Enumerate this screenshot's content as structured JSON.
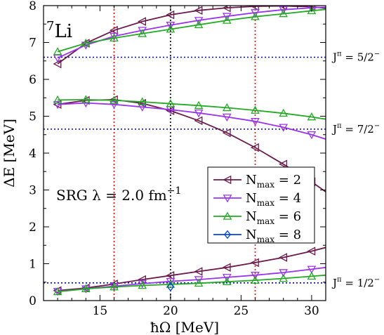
{
  "chart_data": {
    "type": "line",
    "xlabel": "ħΩ [MeV]",
    "ylabel": "ΔE [MeV]",
    "xlim": [
      11,
      31
    ],
    "ylim": [
      0,
      8
    ],
    "xticks": [
      15,
      20,
      25,
      30
    ],
    "yticks": [
      0,
      1,
      2,
      3,
      4,
      5,
      6,
      7,
      8
    ],
    "grid": false,
    "legend_position": "center-right",
    "nucleus": {
      "mass_number": "7",
      "symbol": "Li"
    },
    "annotation": {
      "main": "SRG λ = 2.0 fm",
      "exp": "−1"
    },
    "reference_lines": {
      "vertical": [
        {
          "x": 16,
          "color": "#ff0000"
        },
        {
          "x": 20,
          "color": "#000000"
        },
        {
          "x": 26,
          "color": "#ff0000"
        }
      ],
      "horizontal": [
        {
          "y": 6.6,
          "color": "#0000cc",
          "label": {
            "base": "J",
            "sup": "π",
            "rest": " = 5/2",
            "exp": "−"
          }
        },
        {
          "y": 4.65,
          "color": "#0000cc",
          "label": {
            "base": "J",
            "sup": "π",
            "rest": " = 7/2",
            "exp": "−"
          }
        },
        {
          "y": 0.48,
          "color": "#0000cc",
          "label": {
            "base": "J",
            "sup": "π",
            "rest": " = 1/2",
            "exp": "−"
          }
        }
      ]
    },
    "series": [
      {
        "name": "N_max = 2",
        "label_base": "N",
        "label_sub": "max",
        "label_rest": " = 2",
        "color": "#6b1a4a",
        "marker": "triangle-left",
        "states": [
          {
            "x": [
              12,
              14,
              16,
              18,
              20,
              22,
              24,
              26,
              28,
              30,
              31
            ],
            "y": [
              6.42,
              6.98,
              7.33,
              7.57,
              7.75,
              7.87,
              7.94,
              7.98,
              7.99,
              7.97,
              7.93
            ]
          },
          {
            "x": [
              12,
              14,
              16,
              18,
              20,
              22,
              24,
              26,
              28,
              30,
              31
            ],
            "y": [
              5.32,
              5.43,
              5.45,
              5.35,
              5.15,
              4.88,
              4.55,
              4.15,
              3.7,
              3.22,
              2.95
            ]
          },
          {
            "x": [
              12,
              14,
              16,
              18,
              20,
              22,
              24,
              26,
              28,
              30,
              31
            ],
            "y": [
              0.27,
              0.34,
              0.45,
              0.57,
              0.68,
              0.79,
              0.9,
              1.03,
              1.17,
              1.34,
              1.44
            ]
          }
        ]
      },
      {
        "name": "N_max = 4",
        "label_base": "N",
        "label_sub": "max",
        "label_rest": " = 4",
        "color": "#9933ee",
        "marker": "triangle-down",
        "states": [
          {
            "x": [
              12,
              14,
              16,
              18,
              20,
              22,
              24,
              26,
              28,
              30,
              31
            ],
            "y": [
              6.58,
              6.93,
              7.17,
              7.33,
              7.47,
              7.6,
              7.71,
              7.81,
              7.89,
              7.94,
              7.96
            ]
          },
          {
            "x": [
              12,
              14,
              16,
              18,
              20,
              22,
              24,
              26,
              28,
              30,
              31
            ],
            "y": [
              5.32,
              5.36,
              5.32,
              5.25,
              5.18,
              5.09,
              4.98,
              4.86,
              4.7,
              4.5,
              4.38
            ]
          },
          {
            "x": [
              12,
              14,
              16,
              18,
              20,
              22,
              24,
              26,
              28,
              30,
              31
            ],
            "y": [
              0.25,
              0.32,
              0.39,
              0.46,
              0.52,
              0.57,
              0.63,
              0.69,
              0.76,
              0.85,
              0.9
            ]
          }
        ]
      },
      {
        "name": "N_max = 6",
        "label_base": "N",
        "label_sub": "max",
        "label_rest": " = 6",
        "color": "#22aa22",
        "marker": "triangle-up",
        "states": [
          {
            "x": [
              12,
              14,
              16,
              18,
              20,
              22,
              24,
              26,
              28,
              30,
              31
            ],
            "y": [
              6.75,
              6.98,
              7.12,
              7.24,
              7.36,
              7.48,
              7.6,
              7.7,
              7.78,
              7.86,
              7.9
            ]
          },
          {
            "x": [
              12,
              14,
              16,
              18,
              20,
              22,
              24,
              26,
              28,
              30,
              31
            ],
            "y": [
              5.44,
              5.45,
              5.43,
              5.39,
              5.34,
              5.29,
              5.23,
              5.16,
              5.08,
              4.98,
              4.92
            ]
          },
          {
            "x": [
              12,
              14,
              16,
              18,
              20,
              22,
              24,
              26,
              28,
              30,
              31
            ],
            "y": [
              0.24,
              0.32,
              0.37,
              0.41,
              0.44,
              0.47,
              0.51,
              0.55,
              0.6,
              0.66,
              0.69
            ]
          }
        ]
      },
      {
        "name": "N_max = 8",
        "label_base": "N",
        "label_sub": "max",
        "label_rest": " = 8",
        "color": "#0044dd",
        "marker": "diamond",
        "states": [
          {
            "x": [
              20
            ],
            "y": [
              0.37
            ]
          }
        ]
      }
    ]
  }
}
